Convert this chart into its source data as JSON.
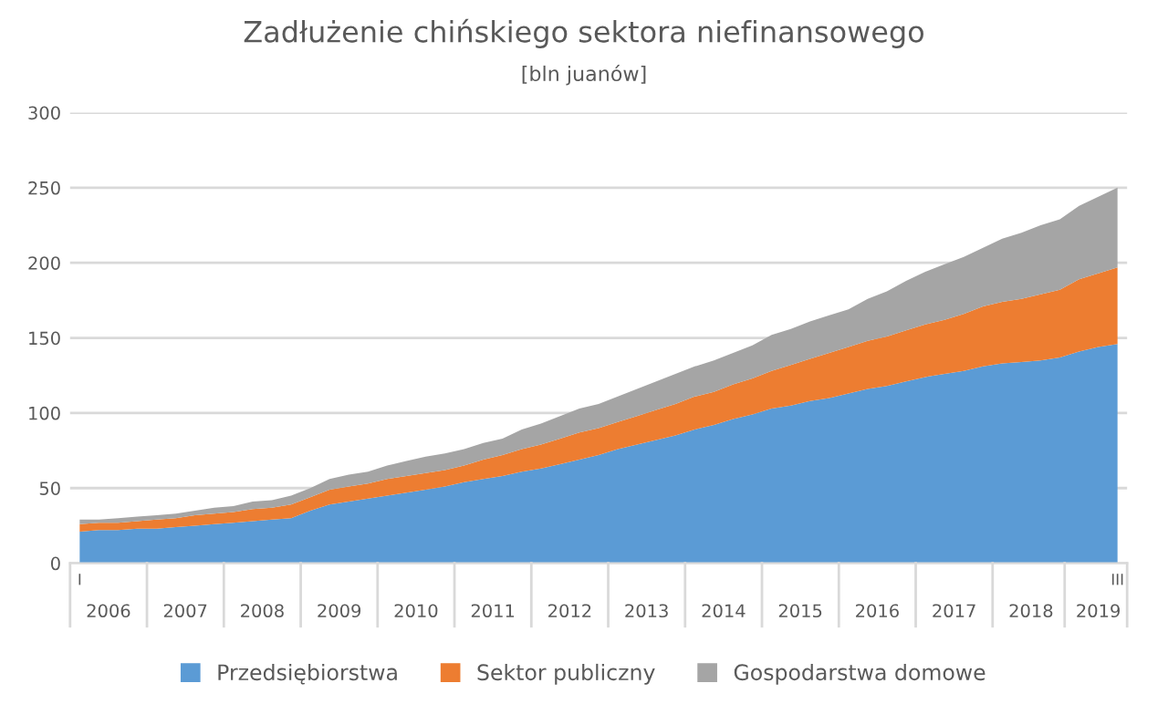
{
  "chart_data": {
    "type": "area",
    "stacked": true,
    "title": "Zadłużenie chińskiego sektora niefinansowego",
    "subtitle": "[bln juanów]",
    "categories": [
      "I",
      null,
      null,
      null,
      null,
      null,
      null,
      null,
      null,
      null,
      null,
      null,
      null,
      null,
      null,
      null,
      null,
      null,
      null,
      null,
      null,
      null,
      null,
      null,
      null,
      null,
      null,
      null,
      null,
      null,
      null,
      null,
      null,
      null,
      null,
      null,
      null,
      null,
      null,
      null,
      null,
      null,
      null,
      null,
      null,
      null,
      null,
      null,
      null,
      null,
      null,
      null,
      null,
      null,
      "III"
    ],
    "x2lim": [
      2005.875,
      2019.625
    ],
    "x2ticks": [
      {
        "value": 2006.375,
        "label": "2006"
      },
      {
        "value": 2007.375,
        "label": "2007"
      },
      {
        "value": 2008.375,
        "label": "2008"
      },
      {
        "value": 2009.375,
        "label": "2009"
      },
      {
        "value": 2010.375,
        "label": "2010"
      },
      {
        "value": 2011.375,
        "label": "2011"
      },
      {
        "value": 2012.375,
        "label": "2012"
      },
      {
        "value": 2013.375,
        "label": "2013"
      },
      {
        "value": 2014.375,
        "label": "2014"
      },
      {
        "value": 2015.375,
        "label": "2015"
      },
      {
        "value": 2016.375,
        "label": "2016"
      },
      {
        "value": 2017.375,
        "label": "2017"
      },
      {
        "value": 2018.375,
        "label": "2018"
      },
      {
        "value": 2019.25,
        "label": "2019"
      }
    ],
    "ylim": [
      0,
      300
    ],
    "yticks": [
      0,
      50,
      100,
      150,
      200,
      250,
      300
    ],
    "grid": "y",
    "legend": "bottom",
    "series": [
      {
        "name": "Przedsiębiorstwa",
        "color": "#5b9bd5",
        "values": [
          21,
          22,
          22,
          23,
          23,
          24,
          25,
          26,
          27,
          28,
          29,
          30,
          35,
          39,
          41,
          43,
          45,
          47,
          49,
          51,
          54,
          56,
          58,
          61,
          63,
          66,
          69,
          72,
          76,
          79,
          82,
          85,
          89,
          92,
          96,
          99,
          103,
          105,
          108,
          110,
          113,
          116,
          118,
          121,
          124,
          126,
          128,
          131,
          133,
          134,
          135,
          137,
          141,
          144,
          146
        ]
      },
      {
        "name": "Sektor publiczny",
        "color": "#ed7d31",
        "values": [
          5,
          5,
          5,
          5,
          6,
          6,
          7,
          7,
          7,
          8,
          8,
          9,
          9,
          10,
          10,
          10,
          11,
          11,
          11,
          11,
          11,
          13,
          14,
          15,
          16,
          17,
          18,
          18,
          18,
          19,
          20,
          21,
          22,
          22,
          23,
          24,
          25,
          27,
          28,
          30,
          31,
          32,
          33,
          34,
          35,
          36,
          38,
          40,
          41,
          42,
          44,
          45,
          48,
          49,
          51
        ]
      },
      {
        "name": "Gospodarstwa domowe",
        "color": "#a5a5a5",
        "values": [
          3,
          2,
          3,
          3,
          3,
          3,
          3,
          4,
          4,
          5,
          5,
          6,
          6,
          7,
          8,
          8,
          9,
          10,
          11,
          11,
          11,
          11,
          11,
          13,
          14,
          15,
          16,
          16,
          17,
          18,
          19,
          20,
          20,
          21,
          21,
          22,
          24,
          24,
          25,
          25,
          25,
          28,
          30,
          33,
          35,
          37,
          38,
          39,
          42,
          44,
          46,
          47,
          49,
          51,
          53
        ]
      }
    ]
  }
}
